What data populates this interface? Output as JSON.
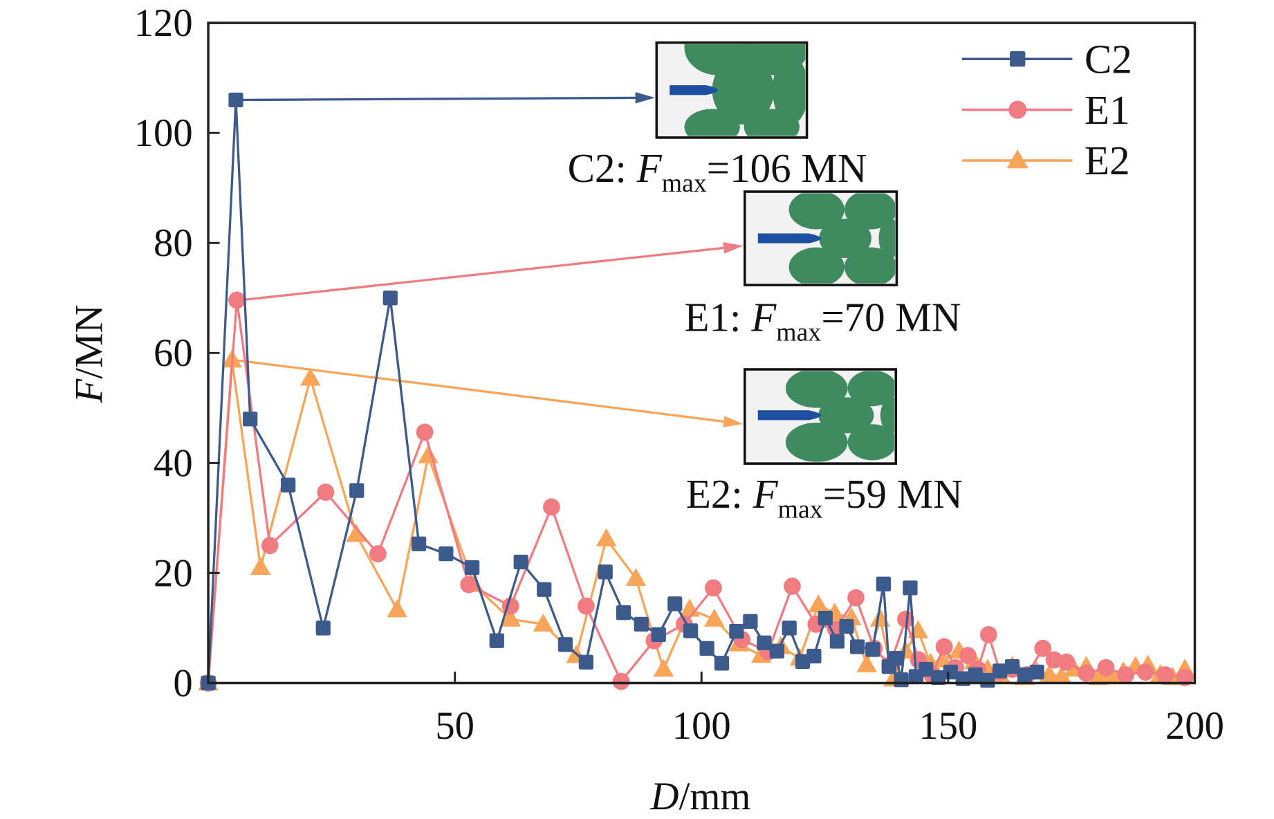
{
  "chart_data": {
    "type": "line",
    "xlabel": {
      "var": "D",
      "unit": "/mm"
    },
    "ylabel": {
      "var": "F",
      "unit": "/MN"
    },
    "xlim": [
      0,
      200
    ],
    "ylim": [
      0,
      120
    ],
    "xticks": [
      50,
      100,
      150,
      200
    ],
    "yticks": [
      0,
      20,
      40,
      60,
      80,
      100,
      120
    ],
    "grid": false,
    "legend_position": "top-right",
    "series": [
      {
        "name": "C2",
        "color": "#3d5a8c",
        "marker": "square",
        "x": [
          0,
          5.6,
          8.5,
          16.2,
          23.3,
          30.1,
          36.9,
          42.7,
          48.2,
          53.5,
          58.5,
          63.4,
          68.1,
          72.4,
          76.6,
          80.5,
          84.2,
          87.8,
          91.3,
          94.6,
          97.8,
          101.1,
          104.1,
          107.1,
          109.9,
          112.7,
          115.3,
          117.8,
          120.5,
          122.8,
          125.1,
          127.5,
          129.4,
          131.6,
          134.7,
          136.9,
          138,
          139.5,
          140.5,
          142.3,
          143.5,
          145.5,
          148,
          150.5,
          153,
          155.5,
          158,
          160.5,
          163,
          165.5,
          168
        ],
        "y": [
          0,
          106,
          48,
          36,
          10,
          35,
          70,
          25.3,
          23.5,
          21,
          7.7,
          22,
          17,
          7,
          3.8,
          20.2,
          12.8,
          10.7,
          8.8,
          14.4,
          9.5,
          6.3,
          3.6,
          9.4,
          11.2,
          7.3,
          5.8,
          10,
          3.9,
          4.9,
          11.8,
          7.6,
          10.3,
          6.6,
          6.1,
          18,
          3,
          4.5,
          0.6,
          17.3,
          1.2,
          2.5,
          1,
          2,
          0.8,
          1.5,
          0.5,
          2.2,
          3,
          1.5,
          2
        ]
      },
      {
        "name": "E1",
        "color": "#f07c82",
        "marker": "circle",
        "x": [
          0,
          5.8,
          12.5,
          23.8,
          34.4,
          43.9,
          52.8,
          61.3,
          69.6,
          76.6,
          83.7,
          90.4,
          96.5,
          102.4,
          108.2,
          113.5,
          118.4,
          123.2,
          127.2,
          131.3,
          135,
          138.2,
          141.4,
          144,
          146.7,
          149.2,
          151.5,
          154,
          156,
          158.2,
          160.5,
          163,
          166,
          169.2,
          171.5,
          174,
          178,
          182,
          186,
          190,
          194,
          198
        ],
        "y": [
          0,
          69.6,
          25,
          34.7,
          23.5,
          45.6,
          17.9,
          14,
          32,
          14,
          0.3,
          7.7,
          10.7,
          17.3,
          7.9,
          5.7,
          17.6,
          10.7,
          9.8,
          15.5,
          6.3,
          3.3,
          11.6,
          4.2,
          1.5,
          6.6,
          2.8,
          5,
          2.5,
          8.8,
          2,
          2.5,
          1.5,
          6.3,
          4.2,
          3.8,
          1.8,
          2.8,
          1.5,
          2,
          1.5,
          1
        ]
      },
      {
        "name": "E2",
        "color": "#f8a55a",
        "marker": "triangle",
        "x": [
          0,
          4.8,
          10.6,
          20.7,
          30,
          38.3,
          44.6,
          53.8,
          61.3,
          67.9,
          74.6,
          80.7,
          86.7,
          92.3,
          97.6,
          102.6,
          107.6,
          112.1,
          116.1,
          119.9,
          123.7,
          127,
          130.4,
          133.5,
          136.2,
          138.9,
          141.4,
          143.9,
          146.4,
          148.9,
          152.2,
          155.3,
          158,
          160.5,
          163,
          165.5,
          168,
          170.5,
          173,
          175.5,
          178,
          180.5,
          183,
          185.5,
          188,
          190.5,
          193,
          195.5,
          198
        ],
        "y": [
          0,
          58.7,
          21,
          55.4,
          27,
          13.3,
          41.3,
          17.9,
          11.6,
          10.7,
          5,
          26.2,
          19,
          2.5,
          13.4,
          11.6,
          7.1,
          5,
          6.6,
          4.5,
          14.2,
          12.7,
          11.8,
          3.3,
          11.6,
          0.7,
          5.8,
          9.5,
          3.6,
          4.2,
          5.8,
          3.9,
          2.5,
          1.5,
          3,
          1,
          2,
          1.5,
          1.2,
          2.5,
          3,
          1,
          1.5,
          2,
          3,
          3.2,
          1.5,
          1,
          2.5
        ]
      }
    ],
    "annotations": [
      {
        "series": "C2",
        "label": "C2: ",
        "var": "F",
        "sub": "max",
        "value": "=106 MN",
        "peak_x": 5.6,
        "peak_y": 106
      },
      {
        "series": "E1",
        "label": "E1: ",
        "var": "F",
        "sub": "max",
        "value": "=70 MN",
        "peak_x": 5.8,
        "peak_y": 69.6
      },
      {
        "series": "E2",
        "label": "E2: ",
        "var": "F",
        "sub": "max",
        "value": "=59 MN",
        "peak_x": 4.8,
        "peak_y": 58.7
      }
    ]
  }
}
